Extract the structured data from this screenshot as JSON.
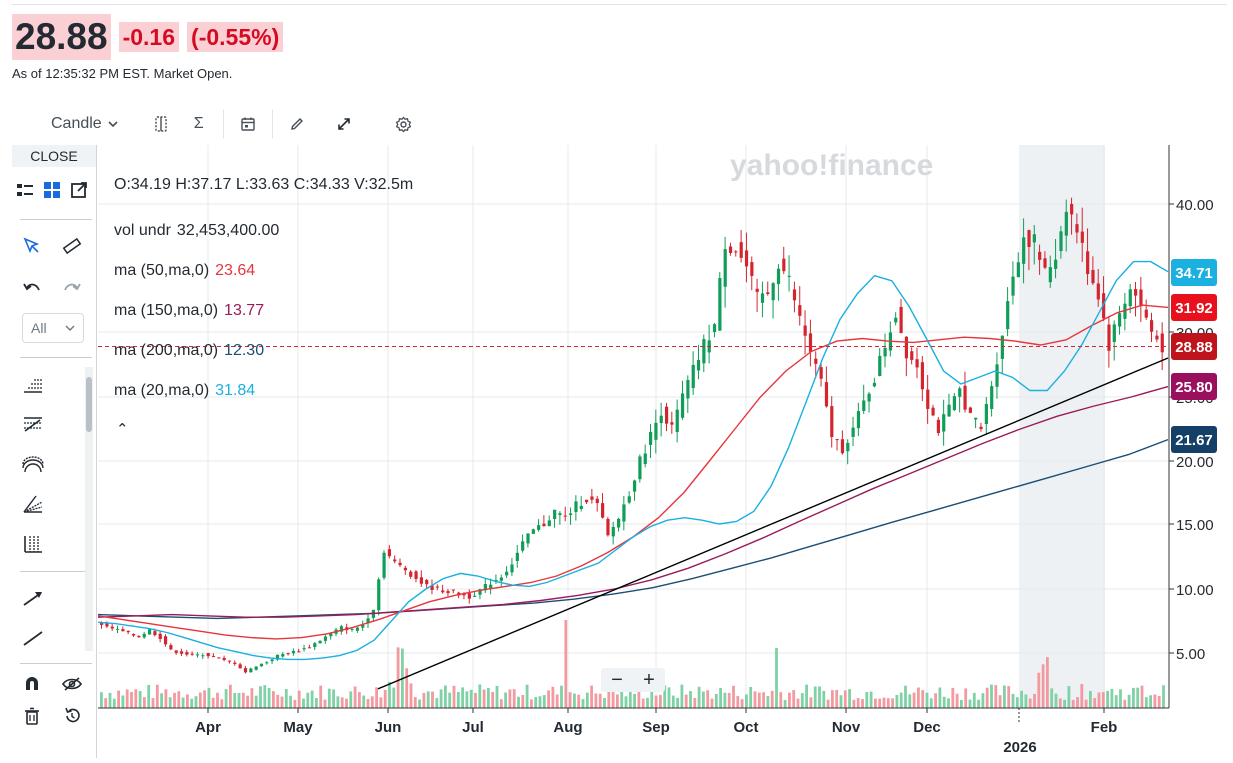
{
  "quote": {
    "price": "28.88",
    "change": "-0.16",
    "change_pct": "(-0.55%)",
    "as_of": "As of 12:35:32 PM EST. Market Open."
  },
  "toolbar": {
    "chart_type": "Candle"
  },
  "sidebar": {
    "close_label": "CLOSE",
    "filter_value": "All"
  },
  "ohlc": "O:34.19  H:37.17  L:33.63  C:34.33  V:32.5m",
  "studies": [
    {
      "name": "vol undr",
      "value": "32,453,400.00",
      "color": "#232a31"
    },
    {
      "name": "ma (50,ma,0)",
      "value": "23.64",
      "color": "#e8353d"
    },
    {
      "name": "ma (150,ma,0)",
      "value": "13.77",
      "color": "#9b1a5a"
    },
    {
      "name": "ma (200,ma,0)",
      "value": "12.30",
      "color": "#1c4e75"
    },
    {
      "name": "ma (20,ma,0)",
      "value": "31.84",
      "color": "#1ab0df"
    }
  ],
  "watermark": "yahoo!finance",
  "zoom": {
    "out": "−",
    "in": "+"
  },
  "chart_data": {
    "type": "candlestick",
    "title": "",
    "y_ticks": [
      "40.00",
      "30.00",
      "25.00",
      "20.00",
      "15.00",
      "10.00",
      "5.00"
    ],
    "x_labels": [
      "Apr",
      "May",
      "Jun",
      "Jul",
      "Aug",
      "Sep",
      "Oct",
      "Nov",
      "Dec",
      "Feb"
    ],
    "year_label": "2026",
    "price_badges": [
      {
        "label": "34.71",
        "color": "#1ab0df"
      },
      {
        "label": "31.92",
        "color": "#e8101d"
      },
      {
        "label": "28.88",
        "color": "#c0141d"
      },
      {
        "label": "25.80",
        "color": "#9b0f5f"
      },
      {
        "label": "21.67",
        "color": "#143f66"
      }
    ],
    "close_path": [
      7.5,
      7.0,
      6.8,
      6.5,
      6.3,
      6.8,
      6.2,
      5.2,
      5.0,
      4.8,
      4.9,
      4.7,
      4.4,
      4.2,
      3.5,
      4.0,
      4.3,
      4.8,
      5.0,
      5.2,
      5.5,
      6.0,
      6.5,
      7.0,
      6.8,
      7.2,
      8.5,
      13.0,
      12.0,
      11.5,
      10.8,
      10.2,
      10.0,
      9.8,
      9.6,
      9.4,
      9.9,
      10.5,
      11.0,
      12.0,
      13.5,
      14.5,
      15.0,
      16.0,
      15.5,
      16.5,
      17.0,
      16.5,
      14.0,
      15.5,
      17.5,
      20.0,
      22.0,
      24.0,
      22.5,
      25.0,
      27.0,
      29.0,
      30.5,
      37.0,
      36.5,
      35.0,
      32.5,
      33.0,
      35.5,
      34.0,
      31.0,
      28.5,
      26.0,
      22.0,
      21.0,
      22.5,
      24.5,
      26.5,
      29.0,
      31.5,
      28.5,
      27.5,
      24.5,
      22.5,
      24.0,
      25.5,
      23.5,
      22.5,
      26.0,
      30.0,
      34.5,
      37.5,
      37.0,
      34.5,
      36.0,
      40.0,
      38.0,
      35.0,
      33.0,
      29.0,
      31.5,
      33.5,
      32.0,
      30.0,
      28.88
    ],
    "ma20_path": [
      7.4,
      7.3,
      7.1,
      6.9,
      6.6,
      6.2,
      5.8,
      5.4,
      5.1,
      4.8,
      4.6,
      4.5,
      4.5,
      4.6,
      4.8,
      5.2,
      6.0,
      7.5,
      9.0,
      10.0,
      10.8,
      11.2,
      11.0,
      10.6,
      10.3,
      10.2,
      10.5,
      11.0,
      11.5,
      12.0,
      13.0,
      14.0,
      14.8,
      15.3,
      15.5,
      15.3,
      15.0,
      15.2,
      16.0,
      18.0,
      21.0,
      24.5,
      28.0,
      31.0,
      33.0,
      34.4,
      34.0,
      32.0,
      29.5,
      27.0,
      26.0,
      26.5,
      27.0,
      26.5,
      25.5,
      25.5,
      27.0,
      29.0,
      31.5,
      34.0,
      35.5,
      35.5,
      34.71
    ],
    "ma50_path": [
      7.9,
      7.6,
      7.3,
      7.0,
      6.7,
      6.4,
      6.2,
      6.1,
      6.2,
      6.5,
      7.0,
      7.6,
      8.3,
      9.0,
      9.5,
      9.9,
      10.2,
      10.5,
      11.0,
      11.8,
      12.8,
      14.0,
      15.5,
      17.5,
      20.0,
      22.5,
      25.0,
      27.0,
      28.5,
      29.3,
      29.5,
      29.3,
      29.2,
      29.4,
      29.6,
      29.5,
      29.3,
      29.0,
      29.4,
      30.5,
      31.5,
      32.1,
      31.92
    ],
    "ma150_path": [
      7.8,
      7.9,
      8.0,
      7.9,
      7.8,
      7.8,
      7.9,
      8.0,
      8.2,
      8.4,
      8.6,
      8.8,
      9.1,
      9.5,
      10.0,
      10.7,
      11.6,
      12.7,
      13.9,
      15.2,
      16.5,
      17.8,
      19.0,
      20.2,
      21.4,
      22.5,
      23.5,
      24.3,
      25.0,
      25.8
    ],
    "ma200_path": [
      8.0,
      7.9,
      7.8,
      7.7,
      7.8,
      7.9,
      8.0,
      8.1,
      8.3,
      8.5,
      8.7,
      8.9,
      9.2,
      9.6,
      10.1,
      10.8,
      11.6,
      12.4,
      13.3,
      14.2,
      15.1,
      16.0,
      16.9,
      17.8,
      18.7,
      19.6,
      20.5,
      21.67
    ],
    "trendline": {
      "from": {
        "label": "Jun",
        "value": 2.2
      },
      "to": {
        "label": "end",
        "value": 28.0
      }
    },
    "last_price_line": 28.88,
    "highlight_range": [
      "2026 start",
      "Feb"
    ]
  }
}
